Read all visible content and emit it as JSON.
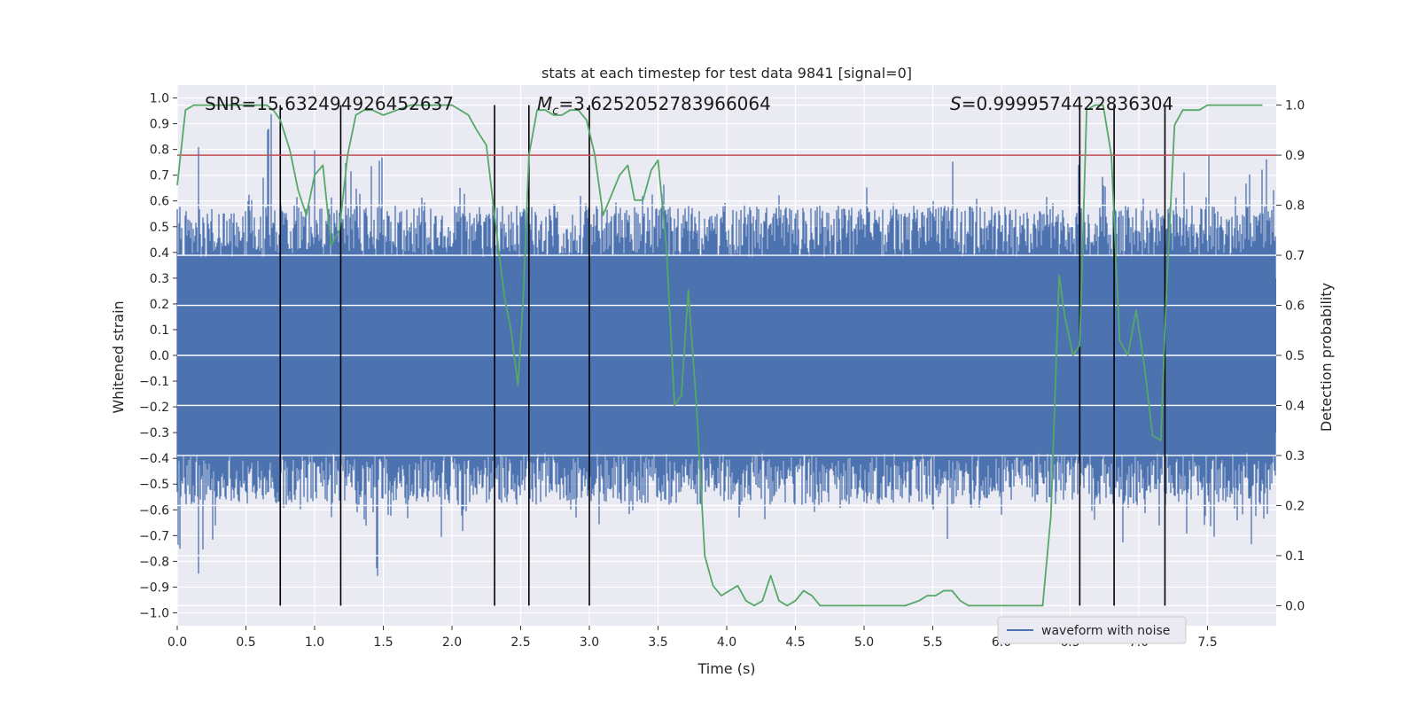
{
  "chart_data": {
    "type": "line",
    "title": "stats at each timestep for test data 9841 [signal=0]",
    "xlabel": "Time (s)",
    "ylabel": "Whitened strain",
    "y2label": "Detection probability",
    "xlim": [
      0,
      8
    ],
    "ylim": [
      -1.05,
      1.05
    ],
    "y2lim": [
      -0.04,
      1.04
    ],
    "xticks": [
      "0.0",
      "0.5",
      "1.0",
      "1.5",
      "2.0",
      "2.5",
      "3.0",
      "3.5",
      "4.0",
      "4.5",
      "5.0",
      "5.5",
      "6.0",
      "6.5",
      "7.0",
      "7.5"
    ],
    "yticks": [
      "1.0",
      "0.9",
      "0.8",
      "0.7",
      "0.6",
      "0.5",
      "0.4",
      "0.3",
      "0.2",
      "0.1",
      "0.0",
      "−0.1",
      "−0.2",
      "−0.3",
      "−0.4",
      "−0.5",
      "−0.6",
      "−0.7",
      "−0.8",
      "−0.9",
      "−1.0"
    ],
    "y2ticks": [
      "1.0",
      "0.9",
      "0.8",
      "0.7",
      "0.6",
      "0.5",
      "0.4",
      "0.3",
      "0.2",
      "0.1",
      "0.0"
    ],
    "annotations": {
      "snr": "SNR=15.632494926452637",
      "mc_symbol": "M",
      "mc_sub": "c",
      "mc_value": "=3.6252052783966064",
      "s_symbol": "S",
      "s_value": "=0.9999574422836304"
    },
    "legend": {
      "label": "waveform with noise",
      "position": "lower-right"
    },
    "threshold": {
      "value": 0.9,
      "axis": "right",
      "color": "#c44e52"
    },
    "event_times": [
      0.75,
      1.19,
      2.31,
      2.56,
      3.0,
      6.57,
      6.82,
      7.19
    ],
    "series": [
      {
        "name": "waveform with noise",
        "axis": "left",
        "color": "#4c72b0",
        "note": "dense noise series (~4096 samples), min/max envelope values per column generated below",
        "envelope": {
          "t": [
            0.0,
            0.05,
            0.1,
            0.15,
            0.2,
            0.25,
            0.3,
            0.35,
            0.4,
            0.45,
            0.5,
            0.55,
            0.6,
            0.65,
            0.7,
            0.75,
            0.8,
            0.85,
            0.9,
            0.95,
            1.0,
            1.05,
            1.1,
            1.15,
            1.2,
            1.25,
            1.3,
            1.35,
            1.4,
            1.45,
            1.5,
            1.55,
            1.6,
            1.65,
            1.7,
            1.75,
            1.8,
            1.85,
            1.9,
            1.95,
            2.0,
            2.05,
            2.1,
            2.15,
            2.2,
            2.25,
            2.3,
            2.35,
            2.4,
            2.45,
            2.5,
            2.55,
            2.6,
            2.65,
            2.7,
            2.75,
            2.8,
            2.85,
            2.9,
            2.95,
            3.0,
            3.05,
            3.1,
            3.15,
            3.2,
            3.25,
            3.3,
            3.35,
            3.4,
            3.45,
            3.5,
            3.55,
            3.6,
            3.65,
            3.7,
            3.75,
            3.8,
            3.85,
            3.9,
            3.95,
            4.0,
            4.05,
            4.1,
            4.15,
            4.2,
            4.25,
            4.3,
            4.35,
            4.4,
            4.45,
            4.5,
            4.55,
            4.6,
            4.65,
            4.7,
            4.75,
            4.8,
            4.85,
            4.9,
            4.95,
            5.0,
            5.05,
            5.1,
            5.15,
            5.2,
            5.25,
            5.3,
            5.35,
            5.4,
            5.45,
            5.5,
            5.55,
            5.6,
            5.65,
            5.7,
            5.75,
            5.8,
            5.85,
            5.9,
            5.95,
            6.0,
            6.05,
            6.1,
            6.15,
            6.2,
            6.25,
            6.3,
            6.35,
            6.4,
            6.45,
            6.5,
            6.55,
            6.6,
            6.65,
            6.7,
            6.75,
            6.8,
            6.85,
            6.9,
            6.95,
            7.0,
            7.05,
            7.1,
            7.15,
            7.2,
            7.25,
            7.3,
            7.35,
            7.4,
            7.45,
            7.5,
            7.55,
            7.6,
            7.65,
            7.7,
            7.75,
            7.8,
            7.85,
            7.9,
            7.95
          ],
          "peaks": [
            0.72,
            0.55,
            0.61,
            0.83,
            0.5,
            0.68,
            0.56,
            0.63,
            0.6,
            0.57,
            0.65,
            0.54,
            0.74,
            0.95,
            0.52,
            0.64,
            0.6,
            0.66,
            0.7,
            0.62,
            0.84,
            0.58,
            0.66,
            0.63,
            0.75,
            0.72,
            0.68,
            0.66,
            0.78,
            0.84,
            0.62,
            0.63,
            0.55,
            0.73,
            0.6,
            0.62,
            0.6,
            0.65,
            0.66,
            0.6,
            0.67,
            0.7,
            0.62,
            0.64,
            0.58,
            0.62,
            0.6,
            0.66,
            0.56,
            0.6,
            0.55,
            0.58,
            0.62,
            0.77,
            0.66,
            0.6,
            0.62,
            0.61,
            0.66,
            0.63,
            0.6,
            0.73,
            0.57,
            0.63,
            0.6,
            0.64,
            0.67,
            0.63,
            0.6,
            0.68,
            0.73,
            0.6,
            0.7,
            0.64,
            0.59,
            0.6,
            0.62,
            0.57,
            0.57,
            0.66,
            0.6,
            0.67,
            0.62,
            0.6,
            0.59,
            0.72,
            0.57,
            0.64,
            0.56,
            0.62,
            0.62,
            0.6,
            0.66,
            0.63,
            0.61,
            0.56,
            0.6,
            0.6,
            0.57,
            0.6,
            0.66,
            0.59,
            0.64,
            0.56,
            0.61,
            0.57,
            0.58,
            0.63,
            0.62,
            0.57,
            0.63,
            0.6,
            0.79,
            0.64,
            0.6,
            0.65,
            0.62,
            0.6,
            0.57,
            0.67,
            0.62,
            0.63,
            0.6,
            0.57,
            0.66,
            0.58,
            0.63,
            0.6,
            0.64,
            0.58,
            0.6,
            0.8,
            0.62,
            0.72,
            0.7,
            0.66,
            0.68,
            0.94,
            0.6,
            0.63,
            0.67,
            0.6,
            0.68,
            0.63,
            0.6,
            0.62,
            0.73,
            0.64,
            0.62,
            0.66,
            0.82,
            0.61,
            0.7,
            0.61,
            0.67,
            0.69,
            0.78,
            0.84,
            0.8,
            0.66
          ],
          "troughs": [
            -0.77,
            -0.55,
            -0.6,
            -0.86,
            -0.58,
            -0.72,
            -0.55,
            -0.62,
            -0.6,
            -0.58,
            -0.66,
            -0.54,
            -0.6,
            -0.58,
            -0.65,
            -0.69,
            -0.6,
            -0.66,
            -0.72,
            -0.62,
            -0.74,
            -0.58,
            -0.66,
            -0.63,
            -0.6,
            -0.66,
            -0.65,
            -0.68,
            -0.62,
            -0.88,
            -0.62,
            -0.64,
            -0.58,
            -0.7,
            -0.63,
            -0.62,
            -0.6,
            -0.66,
            -0.81,
            -0.6,
            -0.66,
            -0.7,
            -0.62,
            -0.64,
            -0.58,
            -0.62,
            -0.6,
            -0.66,
            -0.56,
            -0.6,
            -0.58,
            -0.58,
            -0.62,
            -0.63,
            -0.66,
            -0.6,
            -0.78,
            -0.61,
            -0.66,
            -0.63,
            -0.6,
            -0.66,
            -0.57,
            -0.63,
            -0.6,
            -0.64,
            -0.67,
            -0.63,
            -0.6,
            -0.63,
            -0.66,
            -0.6,
            -0.7,
            -0.64,
            -0.59,
            -0.6,
            -0.62,
            -0.57,
            -0.57,
            -0.62,
            -0.6,
            -0.67,
            -0.62,
            -0.6,
            -0.59,
            -0.66,
            -0.57,
            -0.64,
            -0.56,
            -0.62,
            -0.62,
            -0.6,
            -0.66,
            -0.63,
            -0.61,
            -0.56,
            -0.6,
            -0.6,
            -0.57,
            -0.6,
            -0.66,
            -0.59,
            -0.64,
            -0.56,
            -0.61,
            -0.57,
            -0.58,
            -0.63,
            -0.62,
            -0.57,
            -0.63,
            -0.6,
            -0.82,
            -0.64,
            -0.6,
            -0.65,
            -0.62,
            -0.6,
            -0.57,
            -0.67,
            -0.62,
            -0.63,
            -0.6,
            -0.57,
            -0.66,
            -0.58,
            -0.63,
            -0.6,
            -0.64,
            -0.58,
            -0.6,
            -0.66,
            -0.62,
            -0.7,
            -0.7,
            -0.66,
            -0.68,
            -0.73,
            -0.6,
            -0.63,
            -0.67,
            -0.6,
            -0.68,
            -0.81,
            -0.6,
            -0.62,
            -0.73,
            -0.64,
            -0.62,
            -0.66,
            -0.71,
            -0.61,
            -0.7,
            -0.61,
            -0.67,
            -0.69,
            -0.82,
            -0.7,
            -0.7,
            -0.66
          ]
        }
      },
      {
        "name": "detection probability",
        "axis": "right",
        "color": "#55a868",
        "x": [
          0.0,
          0.06,
          0.12,
          0.2,
          0.3,
          0.4,
          0.5,
          0.6,
          0.65,
          0.7,
          0.75,
          0.82,
          0.88,
          0.94,
          1.0,
          1.06,
          1.12,
          1.18,
          1.24,
          1.3,
          1.36,
          1.42,
          1.5,
          1.6,
          1.7,
          1.8,
          1.9,
          2.0,
          2.06,
          2.12,
          2.18,
          2.25,
          2.31,
          2.38,
          2.43,
          2.48,
          2.52,
          2.56,
          2.62,
          2.68,
          2.74,
          2.8,
          2.86,
          2.92,
          2.98,
          3.04,
          3.1,
          3.16,
          3.22,
          3.28,
          3.33,
          3.39,
          3.45,
          3.5,
          3.56,
          3.62,
          3.67,
          3.72,
          3.78,
          3.84,
          3.9,
          3.96,
          4.02,
          4.08,
          4.14,
          4.2,
          4.26,
          4.32,
          4.38,
          4.44,
          4.5,
          4.56,
          4.62,
          4.68,
          4.74,
          4.8,
          4.9,
          5.0,
          5.1,
          5.2,
          5.3,
          5.4,
          5.46,
          5.52,
          5.58,
          5.64,
          5.7,
          5.76,
          5.82,
          5.88,
          5.94,
          6.0,
          6.1,
          6.2,
          6.3,
          6.36,
          6.42,
          6.46,
          6.52,
          6.57,
          6.62,
          6.68,
          6.74,
          6.8,
          6.86,
          6.92,
          6.98,
          7.04,
          7.1,
          7.16,
          7.2,
          7.26,
          7.32,
          7.38,
          7.44,
          7.5,
          7.6,
          7.7,
          7.8,
          7.9
        ],
        "y": [
          0.84,
          0.99,
          1.0,
          1.0,
          1.0,
          1.0,
          1.0,
          1.0,
          1.0,
          0.99,
          0.97,
          0.91,
          0.83,
          0.78,
          0.86,
          0.88,
          0.72,
          0.75,
          0.9,
          0.98,
          0.99,
          0.99,
          0.98,
          0.99,
          1.0,
          1.0,
          1.0,
          1.0,
          0.99,
          0.98,
          0.95,
          0.92,
          0.78,
          0.62,
          0.55,
          0.44,
          0.62,
          0.9,
          0.99,
          0.99,
          0.98,
          0.98,
          0.99,
          0.99,
          0.97,
          0.9,
          0.78,
          0.82,
          0.86,
          0.88,
          0.81,
          0.81,
          0.87,
          0.89,
          0.72,
          0.4,
          0.42,
          0.63,
          0.4,
          0.1,
          0.04,
          0.02,
          0.03,
          0.04,
          0.01,
          0.0,
          0.01,
          0.06,
          0.01,
          0.0,
          0.01,
          0.03,
          0.02,
          0.0,
          0.0,
          0.0,
          0.0,
          0.0,
          0.0,
          0.0,
          0.0,
          0.01,
          0.02,
          0.02,
          0.03,
          0.03,
          0.01,
          0.0,
          0.0,
          0.0,
          0.0,
          0.0,
          0.0,
          0.0,
          0.0,
          0.18,
          0.66,
          0.58,
          0.5,
          0.52,
          0.99,
          1.0,
          1.0,
          0.9,
          0.53,
          0.5,
          0.59,
          0.48,
          0.34,
          0.33,
          0.62,
          0.96,
          0.99,
          0.99,
          0.99,
          1.0,
          1.0,
          1.0,
          1.0,
          1.0
        ]
      }
    ]
  }
}
